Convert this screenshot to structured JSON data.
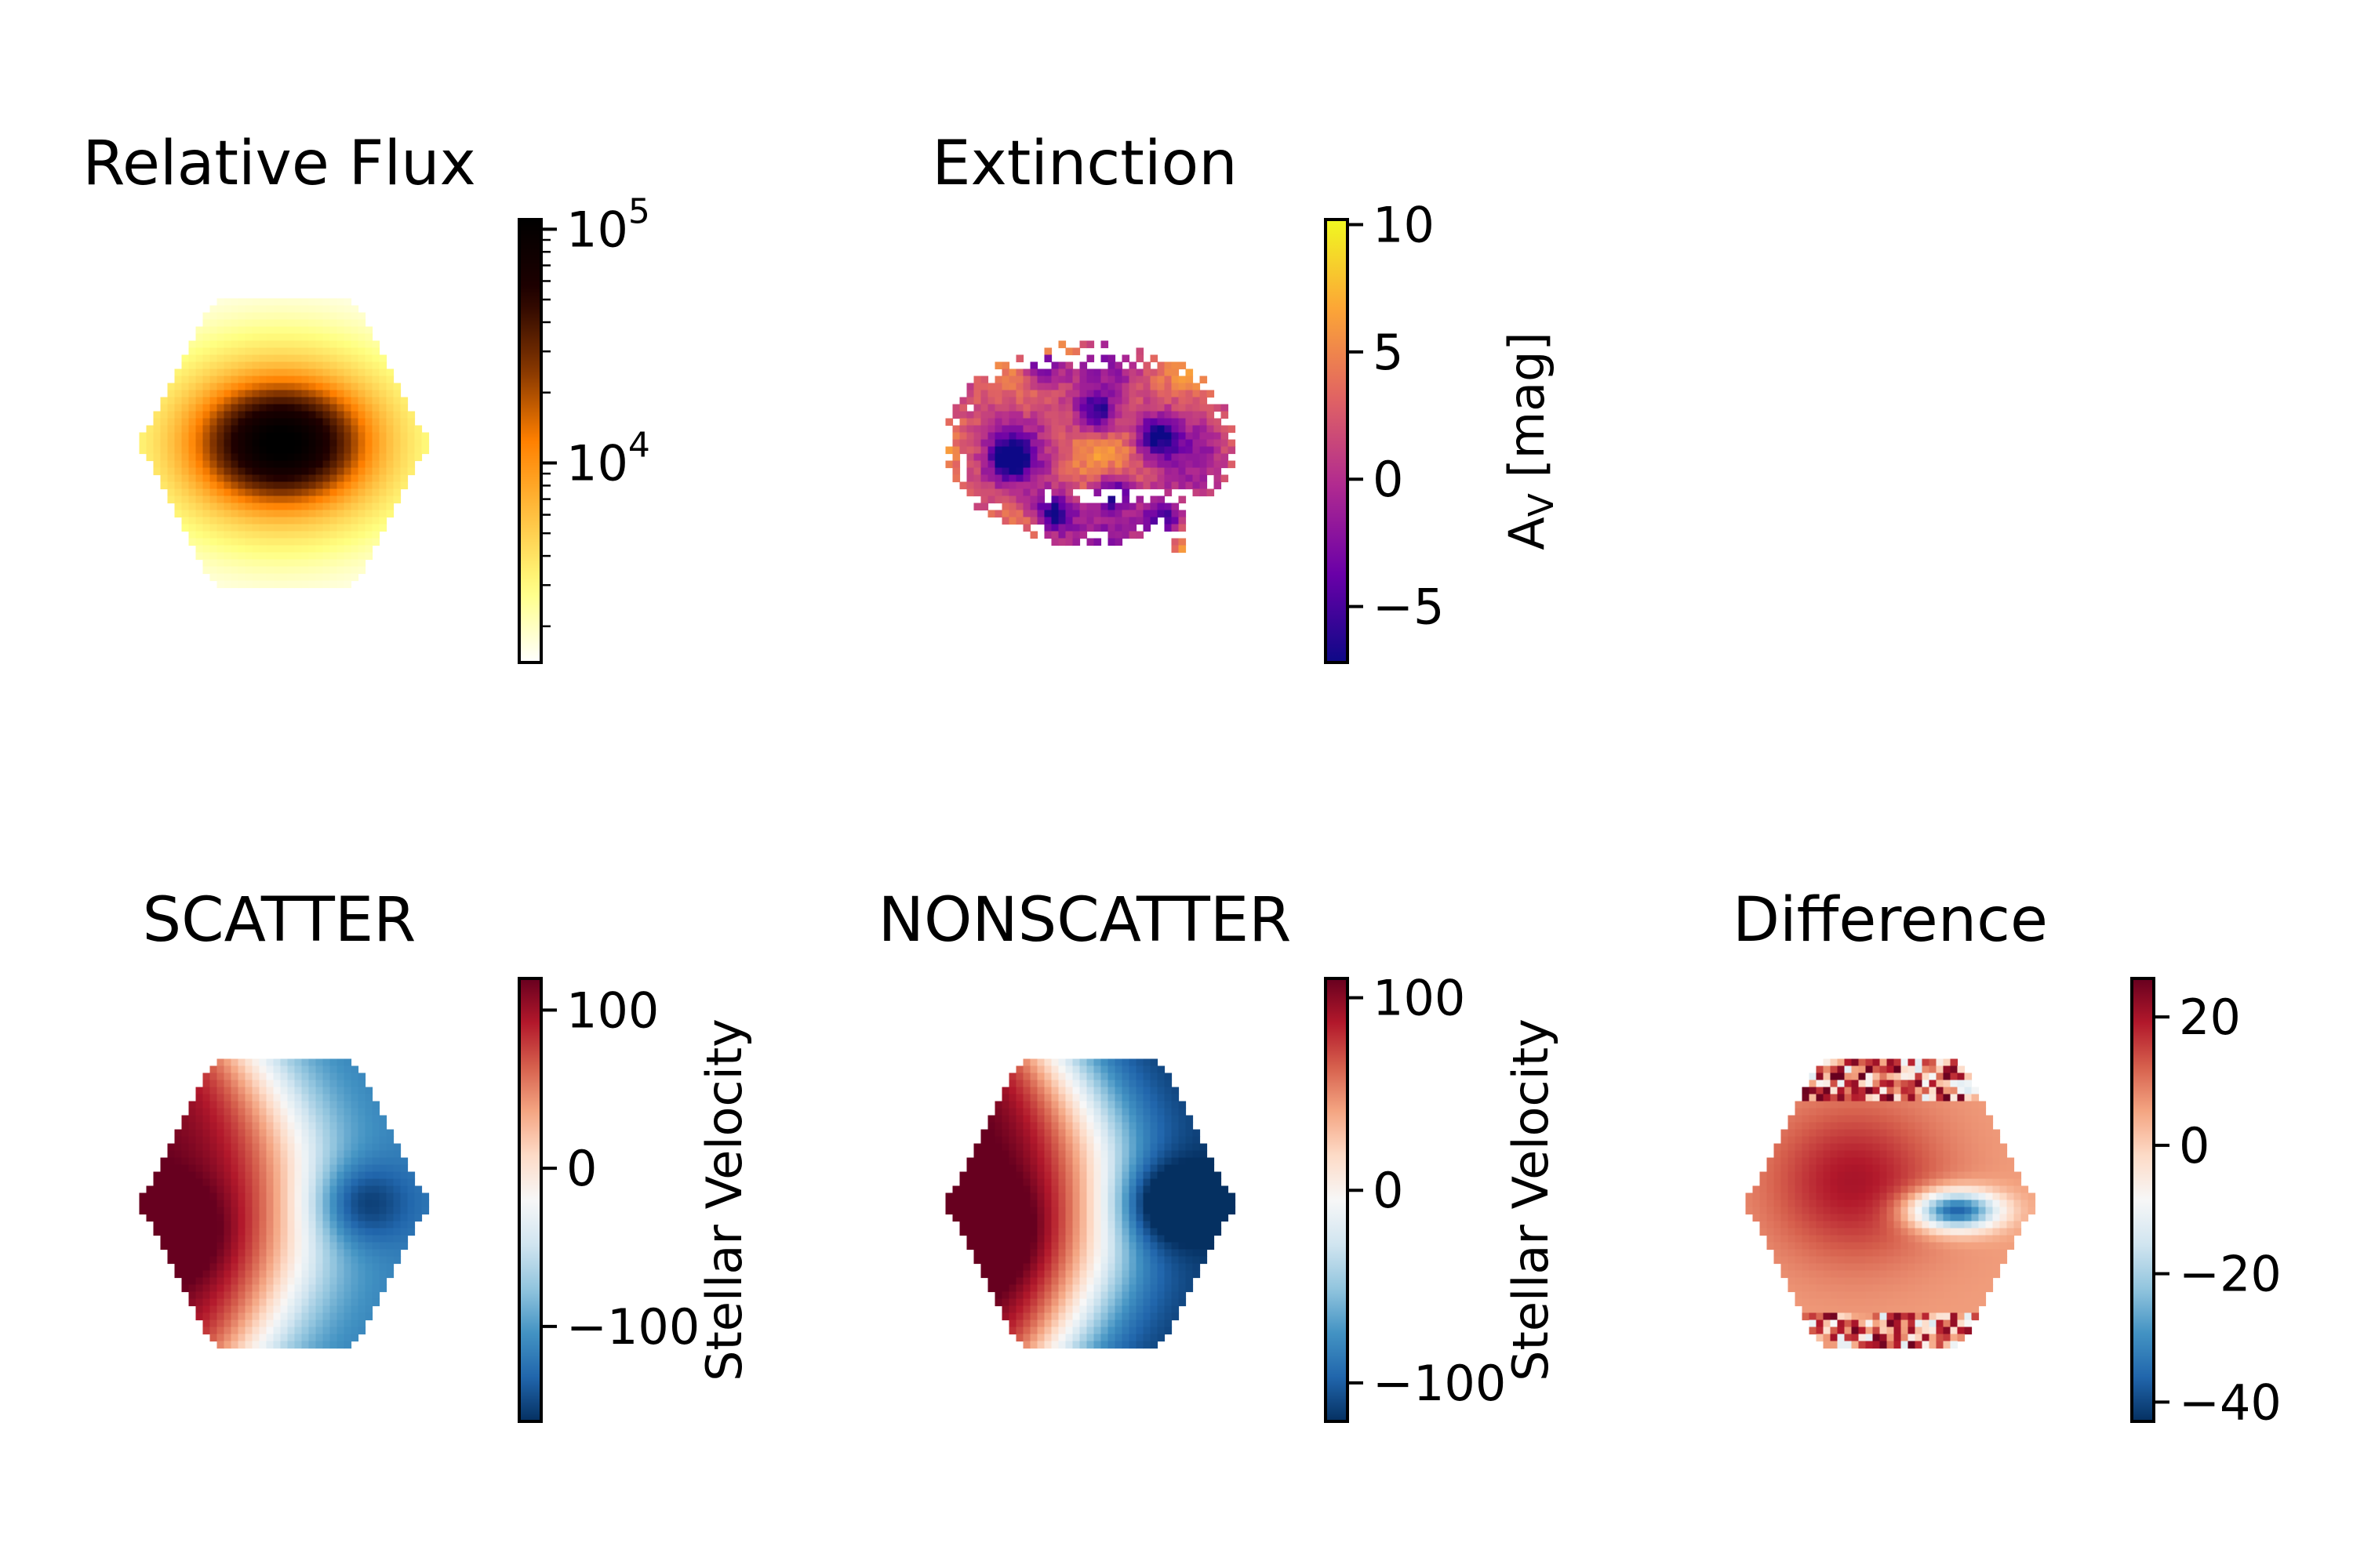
{
  "chart_data": [
    {
      "type": "heatmap",
      "title": "Relative Flux",
      "map": "central-peak",
      "colormap": "afmhot_r",
      "colorbar": {
        "scale": "log",
        "range": [
          1400,
          110000
        ],
        "ticks": [
          10000,
          100000
        ],
        "tick_labels": [
          {
            "base": "10",
            "exp": "4"
          },
          {
            "base": "10",
            "exp": "5"
          }
        ],
        "label": ""
      }
    },
    {
      "type": "heatmap",
      "title": "Extinction",
      "map": "patchy",
      "colormap": "plasma",
      "colorbar": {
        "scale": "linear",
        "range": [
          -7.2,
          10.2
        ],
        "ticks": [
          10,
          5,
          0,
          -5
        ],
        "tick_labels": [
          "10",
          "5",
          "0",
          "−5"
        ],
        "label": {
          "main": "A",
          "sub": "V",
          "rest": " [mag]"
        }
      }
    },
    {
      "type": "heatmap",
      "title": "SCATTER",
      "map": "rotation",
      "colormap": "RdBu_r",
      "colorbar": {
        "scale": "linear",
        "range": [
          -160,
          120
        ],
        "ticks": [
          100,
          0,
          -100
        ],
        "tick_labels": [
          "100",
          "0",
          "−100"
        ],
        "label": "Stellar Velocity"
      }
    },
    {
      "type": "heatmap",
      "title": "NONSCATTER",
      "map": "rotation",
      "colormap": "RdBu_r",
      "colorbar": {
        "scale": "linear",
        "range": [
          -120,
          110
        ],
        "ticks": [
          100,
          0,
          -100
        ],
        "tick_labels": [
          "100",
          "0",
          "−100"
        ],
        "label": "Stellar Velocity"
      }
    },
    {
      "type": "heatmap",
      "title": "Difference",
      "map": "difference",
      "colormap": "RdBu_r",
      "colorbar": {
        "scale": "linear",
        "range": [
          -43,
          26
        ],
        "ticks": [
          20,
          0,
          -20,
          -40
        ],
        "tick_labels": [
          "20",
          "0",
          "−20",
          "−40"
        ],
        "label": ""
      }
    }
  ],
  "colors": {
    "afmhot_r": [
      "#ffffff",
      "#ffff80",
      "#ffbf40",
      "#ff8000",
      "#803300",
      "#200000",
      "#000000"
    ],
    "plasma": [
      "#0d0887",
      "#6a00a8",
      "#b12a90",
      "#e16462",
      "#fca636",
      "#f0f921"
    ],
    "RdBu_r": [
      "#053061",
      "#2166ac",
      "#4393c3",
      "#92c5de",
      "#d1e5f0",
      "#f7f7f7",
      "#fddbc7",
      "#f4a582",
      "#d6604d",
      "#b2182b",
      "#67001f"
    ]
  }
}
